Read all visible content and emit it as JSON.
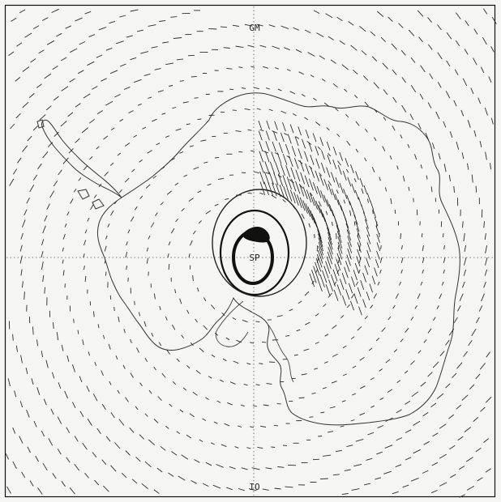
{
  "labels": {
    "top_meridian": "GM",
    "bottom_meridian": "IO",
    "pole": "SP"
  },
  "colors": {
    "ink": "#222222",
    "paper": "#f5f5f3",
    "frame": "#111111"
  }
}
